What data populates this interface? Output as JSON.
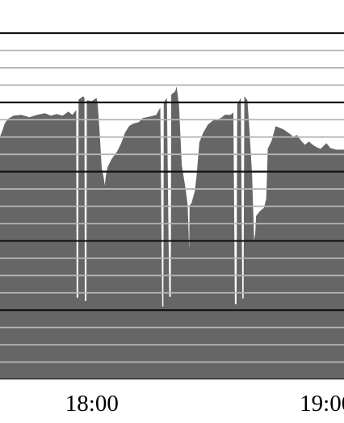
{
  "chart_data": {
    "type": "area",
    "title": "",
    "xlabel": "",
    "ylabel": "",
    "x_tick_labels": [
      {
        "label": "18:00",
        "t": 0
      },
      {
        "label": "19:00",
        "t": 60
      }
    ],
    "x_range": [
      -23.5,
      64.5
    ],
    "y_range": [
      0,
      450
    ],
    "fill_color": "#666666",
    "gridlines": [
      {
        "y": 0,
        "major": true
      },
      {
        "y": 21.4,
        "major": false
      },
      {
        "y": 42.8,
        "major": false
      },
      {
        "y": 64.2,
        "major": false
      },
      {
        "y": 85.6,
        "major": true
      },
      {
        "y": 107,
        "major": false
      },
      {
        "y": 128.4,
        "major": false
      },
      {
        "y": 149.8,
        "major": false
      },
      {
        "y": 171.2,
        "major": true
      },
      {
        "y": 192.6,
        "major": false
      },
      {
        "y": 214,
        "major": false
      },
      {
        "y": 235.4,
        "major": false
      },
      {
        "y": 256.8,
        "major": true
      },
      {
        "y": 278.2,
        "major": false
      },
      {
        "y": 299.6,
        "major": false
      },
      {
        "y": 321,
        "major": false
      },
      {
        "y": 342.4,
        "major": true
      },
      {
        "y": 363.8,
        "major": false
      },
      {
        "y": 385.2,
        "major": false
      },
      {
        "y": 406.6,
        "major": false
      },
      {
        "y": 428,
        "major": true
      }
    ],
    "series": [
      {
        "points": [
          [
            -23.5,
            300
          ],
          [
            -23,
            306
          ],
          [
            -22.3,
            316
          ],
          [
            -21.5,
            322
          ],
          [
            -20,
            326
          ],
          [
            -18,
            327
          ],
          [
            -16,
            324
          ],
          [
            -14,
            327
          ],
          [
            -12,
            329
          ],
          [
            -10.5,
            326
          ],
          [
            -9,
            328
          ],
          [
            -7.5,
            326
          ],
          [
            -6,
            331
          ],
          [
            -5,
            327
          ],
          [
            -4,
            333
          ],
          [
            -3.9,
            101
          ],
          [
            -3.5,
            101
          ],
          [
            -3.4,
            346
          ],
          [
            -2.2,
            350
          ],
          [
            -1.9,
            348
          ],
          [
            -1.8,
            97
          ],
          [
            -1.4,
            97
          ],
          [
            -1.3,
            345
          ],
          [
            0,
            344
          ],
          [
            1.2,
            348
          ],
          [
            1.5,
            340
          ],
          [
            2,
            305
          ],
          [
            2.5,
            262
          ],
          [
            3,
            250
          ],
          [
            3.3,
            240
          ],
          [
            3.6,
            252
          ],
          [
            4,
            262
          ],
          [
            5,
            272
          ],
          [
            6.5,
            282
          ],
          [
            7.5,
            292
          ],
          [
            8.5,
            305
          ],
          [
            9.5,
            313
          ],
          [
            10.5,
            316
          ],
          [
            12,
            318
          ],
          [
            13,
            323
          ],
          [
            15,
            325
          ],
          [
            16.5,
            327
          ],
          [
            17.5,
            336
          ],
          [
            18,
            90
          ],
          [
            18.3,
            90
          ],
          [
            18.4,
            342
          ],
          [
            19.2,
            348
          ],
          [
            19.8,
            102
          ],
          [
            20.2,
            102
          ],
          [
            20.3,
            352
          ],
          [
            21.3,
            356
          ],
          [
            21.7,
            362
          ],
          [
            22.3,
            338
          ],
          [
            23,
            265
          ],
          [
            24,
            235
          ],
          [
            24.5,
            215
          ],
          [
            24.9,
            160
          ],
          [
            25,
            215
          ],
          [
            25.5,
            218
          ],
          [
            26.3,
            232
          ],
          [
            26.8,
            252
          ],
          [
            27.5,
            293
          ],
          [
            28.5,
            305
          ],
          [
            29.7,
            315
          ],
          [
            31,
            320
          ],
          [
            33,
            323
          ],
          [
            34,
            327
          ],
          [
            35.5,
            327
          ],
          [
            36.2,
            330
          ],
          [
            36.6,
            93
          ],
          [
            37,
            93
          ],
          [
            37.2,
            340
          ],
          [
            38.1,
            348
          ],
          [
            38.5,
            100
          ],
          [
            38.8,
            100
          ],
          [
            39,
            350
          ],
          [
            39.8,
            345
          ],
          [
            40.3,
            310
          ],
          [
            41,
            252
          ],
          [
            41.5,
            172
          ],
          [
            41.8,
            180
          ],
          [
            42,
            202
          ],
          [
            43,
            208
          ],
          [
            44,
            212
          ],
          [
            44.6,
            223
          ],
          [
            45,
            285
          ],
          [
            46,
            295
          ],
          [
            47,
            313
          ],
          [
            48,
            311
          ],
          [
            49,
            309
          ],
          [
            50.5,
            304
          ],
          [
            51.5,
            300
          ],
          [
            52.5,
            302
          ],
          [
            53.5,
            295
          ],
          [
            54.5,
            290
          ],
          [
            55.5,
            294
          ],
          [
            56.5,
            290
          ],
          [
            57.5,
            287
          ],
          [
            58.5,
            285
          ],
          [
            60,
            292
          ],
          [
            61,
            286
          ],
          [
            62.5,
            284
          ],
          [
            64.5,
            284
          ]
        ]
      }
    ]
  }
}
